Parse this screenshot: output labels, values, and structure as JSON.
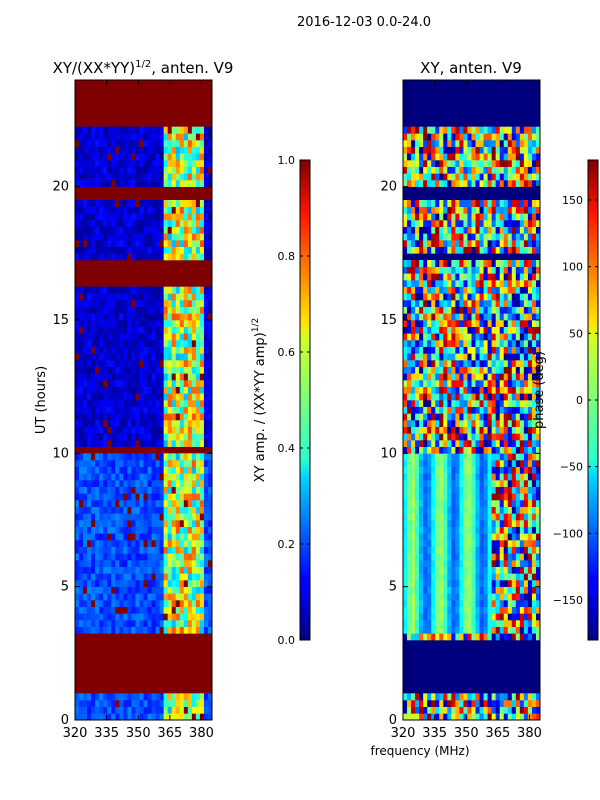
{
  "figure_title": "2016-12-03 0.0-24.0",
  "shared_xlabel": "frequency (MHz)",
  "colors": {
    "background_fill": "#7f0000",
    "baseline_fill": "#00007f",
    "axis": "#000000"
  },
  "chart_data": [
    {
      "type": "heatmap",
      "title_main": "XY/(XX*YY)",
      "title_exp": "1/2",
      "title_tail": ", anten. V9",
      "ylabel": "UT (hours)",
      "xlim": [
        320,
        385
      ],
      "ylim": [
        0,
        24
      ],
      "xticks": [
        320,
        335,
        350,
        365,
        380
      ],
      "yticks": [
        0,
        5,
        10,
        15,
        20
      ],
      "saturated_bands_hours": [
        [
          0.95,
          3.15
        ],
        [
          10.0,
          10.35
        ],
        [
          16.3,
          17.3
        ],
        [
          19.5,
          20.0
        ],
        [
          22.2,
          24.0
        ]
      ],
      "colorbar": {
        "label_main": "XY amp. / (XX*YY amp)",
        "label_exp": "1/2",
        "range": [
          0.0,
          1.0
        ],
        "ticks": [
          "0.0",
          "0.2",
          "0.4",
          "0.6",
          "0.8",
          "1.0"
        ]
      }
    },
    {
      "type": "heatmap",
      "title": "XY, anten. V9",
      "xlim": [
        320,
        385
      ],
      "ylim": [
        0,
        24
      ],
      "xticks": [
        320,
        335,
        350,
        365,
        380
      ],
      "yticks": [
        0,
        5,
        10,
        15,
        20
      ],
      "blank_bands_hours": [
        [
          1.0,
          3.0
        ],
        [
          17.3,
          17.6
        ],
        [
          19.6,
          19.9
        ],
        [
          22.2,
          24.0
        ]
      ],
      "colorbar": {
        "label": "phase (deg)",
        "range": [
          -180,
          180
        ],
        "ticks": [
          "−150",
          "−100",
          "−50",
          "0",
          "50",
          "100",
          "150"
        ]
      }
    }
  ]
}
